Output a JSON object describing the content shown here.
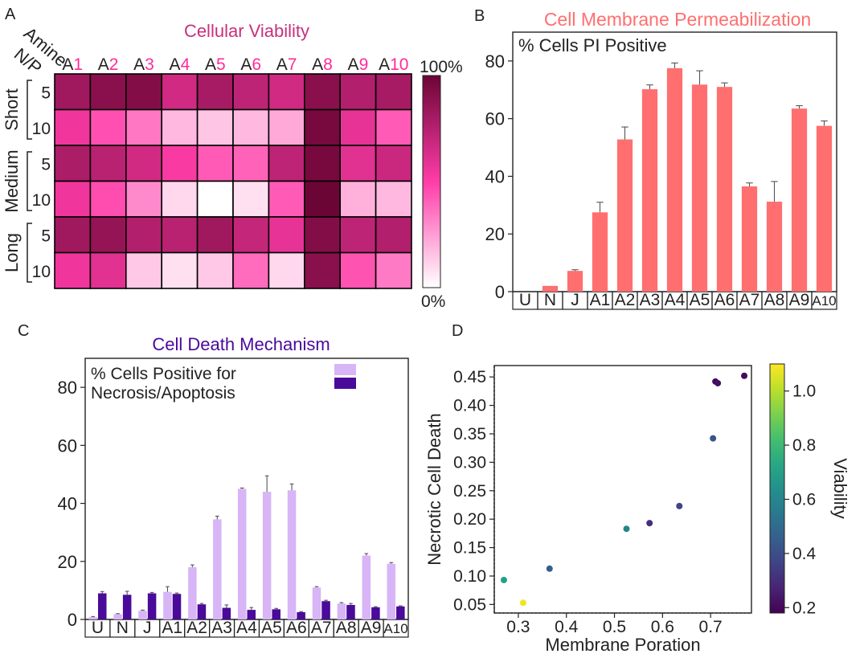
{
  "chart_data": [
    {
      "panel": "A",
      "type": "heatmap",
      "title": "Cellular Viability",
      "xlabel": "Amine",
      "ylabel": "N/P",
      "columns": [
        {
          "prefix": "A",
          "num": "1"
        },
        {
          "prefix": "A",
          "num": "2"
        },
        {
          "prefix": "A",
          "num": "3"
        },
        {
          "prefix": "A",
          "num": "4"
        },
        {
          "prefix": "A",
          "num": "5"
        },
        {
          "prefix": "A",
          "num": "6"
        },
        {
          "prefix": "A",
          "num": "7"
        },
        {
          "prefix": "A",
          "num": "8"
        },
        {
          "prefix": "A",
          "num": "9"
        },
        {
          "prefix": "A",
          "num": "10"
        }
      ],
      "groups": [
        {
          "name": "Short",
          "rows": [
            "5",
            "10"
          ]
        },
        {
          "name": "Medium",
          "rows": [
            "5",
            "10"
          ]
        },
        {
          "name": "Long",
          "rows": [
            "5",
            "10"
          ]
        }
      ],
      "values": [
        [
          0.82,
          0.9,
          0.92,
          0.66,
          0.8,
          0.72,
          0.66,
          0.9,
          0.76,
          0.8
        ],
        [
          0.55,
          0.45,
          0.35,
          0.18,
          0.15,
          0.18,
          0.22,
          0.96,
          0.58,
          0.42
        ],
        [
          0.78,
          0.74,
          0.66,
          0.52,
          0.42,
          0.4,
          0.72,
          0.96,
          0.6,
          0.68
        ],
        [
          0.55,
          0.46,
          0.3,
          0.1,
          0.0,
          0.08,
          0.42,
          1.0,
          0.2,
          0.18
        ],
        [
          0.82,
          0.86,
          0.76,
          0.74,
          0.82,
          0.7,
          0.58,
          0.92,
          0.72,
          0.76
        ],
        [
          0.55,
          0.6,
          0.14,
          0.08,
          0.14,
          0.38,
          0.1,
          0.9,
          0.44,
          0.34
        ]
      ],
      "colorbar": {
        "max_label": "100%",
        "min_label": "0%"
      }
    },
    {
      "panel": "B",
      "type": "bar",
      "title": "Cell Membrane Permeabilization",
      "annotation": "% Cells PI Positive",
      "categories": [
        "U",
        "N",
        "J",
        "A1",
        "A2",
        "A3",
        "A4",
        "A5",
        "A6",
        "A7",
        "A8",
        "A9",
        "A10"
      ],
      "values": [
        0,
        2.0,
        7.2,
        27.5,
        52.8,
        70.2,
        77.5,
        71.8,
        71.0,
        36.5,
        31.2,
        63.5,
        57.5
      ],
      "errors": [
        0,
        0,
        0.4,
        3.5,
        4.3,
        1.5,
        1.8,
        4.8,
        1.4,
        1.2,
        7.0,
        1.0,
        1.7
      ],
      "ylim": [
        0,
        90
      ],
      "yticks": [
        0,
        20,
        40,
        60,
        80
      ],
      "color": "#ff6f6f"
    },
    {
      "panel": "C",
      "type": "bar",
      "title": "Cell Death Mechanism",
      "legend_text": [
        "% Cells Positive for",
        "Necrosis/Apoptosis"
      ],
      "categories": [
        "U",
        "N",
        "J",
        "A1",
        "A2",
        "A3",
        "A4",
        "A5",
        "A6",
        "A7",
        "A8",
        "A9",
        "A10"
      ],
      "series": [
        {
          "name": "Necrosis",
          "color": "#d7b5f7",
          "values": [
            0.8,
            1.8,
            3.0,
            9.5,
            18.0,
            34.5,
            45.0,
            44.0,
            44.5,
            11.0,
            5.5,
            22.0,
            19.2
          ],
          "errors": [
            0.2,
            0.2,
            0.2,
            1.8,
            0.8,
            1.1,
            0.3,
            5.5,
            2.2,
            0.3,
            0.3,
            0.7,
            0.4
          ]
        },
        {
          "name": "Apoptosis",
          "color": "#4a0a9a",
          "values": [
            9.0,
            8.5,
            9.0,
            8.8,
            5.2,
            4.0,
            3.3,
            3.5,
            2.5,
            6.3,
            5.0,
            4.2,
            4.5
          ],
          "errors": [
            0.6,
            1.2,
            0.3,
            0.3,
            0.3,
            1.0,
            0.8,
            0.3,
            0.2,
            0.3,
            0.5,
            0.2,
            0.2
          ]
        }
      ],
      "ylim": [
        0,
        90
      ],
      "yticks": [
        0,
        20,
        40,
        60,
        80
      ]
    },
    {
      "panel": "D",
      "type": "scatter",
      "xlabel": "Membrane Poration",
      "ylabel": "Necrotic Cell Death",
      "colorbar_label": "Viability",
      "xlim": [
        0.25,
        0.785
      ],
      "ylim": [
        0.035,
        0.47
      ],
      "xticks": [
        0.3,
        0.4,
        0.5,
        0.6,
        0.7
      ],
      "yticks": [
        0.05,
        0.1,
        0.15,
        0.2,
        0.25,
        0.3,
        0.35,
        0.4,
        0.45
      ],
      "colorbar_range": [
        0.18,
        1.1
      ],
      "colorbar_ticks": [
        0.2,
        0.4,
        0.6,
        0.8,
        1.0
      ],
      "points": [
        {
          "x": 0.31,
          "y": 0.053,
          "v": 1.08
        },
        {
          "x": 0.27,
          "y": 0.093,
          "v": 0.7
        },
        {
          "x": 0.365,
          "y": 0.113,
          "v": 0.45
        },
        {
          "x": 0.525,
          "y": 0.183,
          "v": 0.6
        },
        {
          "x": 0.573,
          "y": 0.193,
          "v": 0.3
        },
        {
          "x": 0.635,
          "y": 0.223,
          "v": 0.37
        },
        {
          "x": 0.705,
          "y": 0.342,
          "v": 0.42
        },
        {
          "x": 0.71,
          "y": 0.442,
          "v": 0.2
        },
        {
          "x": 0.715,
          "y": 0.439,
          "v": 0.22
        },
        {
          "x": 0.77,
          "y": 0.452,
          "v": 0.2
        }
      ]
    }
  ],
  "labels": {
    "panel_a": "A",
    "panel_b": "B",
    "panel_c": "C",
    "panel_d": "D"
  },
  "colors": {
    "heat_low": "#ffffff",
    "heat_mid": "#ff3ca8",
    "heat_high": "#6b0535",
    "title_a": "#c8307e",
    "title_b": "#ff6f6f",
    "title_c": "#4a0a9a",
    "column_number": "#ff2a9c"
  }
}
